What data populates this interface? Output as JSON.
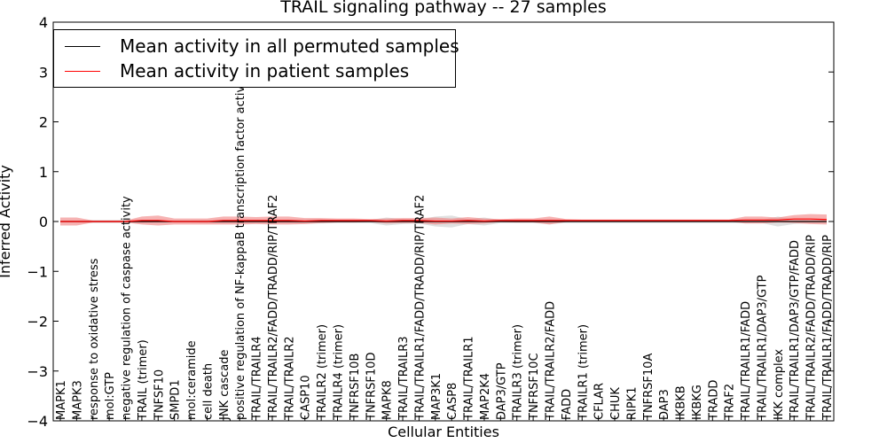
{
  "chart_data": {
    "type": "line",
    "title": "TRAIL signaling pathway -- 27 samples",
    "xlabel": "Cellular Entities",
    "ylabel": "Inferred Activity",
    "ylim": [
      -4,
      4
    ],
    "yticks": [
      -4,
      -3,
      -2,
      -1,
      0,
      1,
      2,
      3,
      4
    ],
    "legend_position": "upper-left",
    "categories": [
      "MAPK1",
      "MAPK3",
      "response to oxidative stress",
      "mol:GTP",
      "negative regulation of caspase activity",
      "TRAIL (trimer)",
      "TNFSF10",
      "SMPD1",
      "mol:ceramide",
      "cell death",
      "JNK cascade",
      "positive regulation of NF-kappaB transcription factor activity",
      "TRAIL/TRAILR4",
      "TRAIL/TRAILR2/FADD/TRADD/RIP/TRAF2",
      "TRAIL/TRAILR2",
      "CASP10",
      "TRAILR2 (trimer)",
      "TRAILR4 (trimer)",
      "TNFRSF10B",
      "TNFRSF10D",
      "MAPK8",
      "TRAIL/TRAILR3",
      "TRAIL/TRAILR1/FADD/TRADD/RIP/TRAF2",
      "MAP3K1",
      "CASP8",
      "TRAIL/TRAILR1",
      "MAP2K4",
      "DAP3/GTP",
      "TRAILR3 (trimer)",
      "TNFRSF10C",
      "TRAIL/TRAILR2/FADD",
      "FADD",
      "TRAILR1 (trimer)",
      "CFLAR",
      "CHUK",
      "RIPK1",
      "TNFRSF10A",
      "DAP3",
      "IKBKB",
      "IKBKG",
      "TRADD",
      "TRAF2",
      "TRAIL/TRAILR1/FADD",
      "TRAIL/TRAILR1/DAP3/GTP",
      "IKK complex",
      "TRAIL/TRAILR1/DAP3/GTP/FADD",
      "TRAIL/TRAILR2/FADD/TRADD/RIP",
      "TRAIL/TRAILR1/FADD/TRADD/RIP"
    ],
    "series": [
      {
        "name": "Mean activity in all permuted samples",
        "color": "#000000",
        "band_color": "#bbbbbb",
        "values": [
          0,
          0,
          0,
          0,
          0,
          0,
          0,
          0,
          0,
          0,
          0,
          0,
          0,
          0,
          0,
          0,
          0,
          0,
          0,
          0,
          0,
          0,
          0,
          0,
          0,
          0,
          0,
          0,
          0,
          0,
          0,
          0,
          0,
          0,
          0,
          0,
          0,
          0,
          0,
          0,
          0,
          0,
          0,
          0,
          0,
          0,
          0,
          0
        ],
        "band": [
          0.02,
          0.02,
          0.03,
          0.03,
          0.03,
          0.03,
          0.02,
          0.02,
          0.02,
          0.03,
          0.03,
          0.03,
          0.03,
          0.03,
          0.03,
          0.04,
          0.04,
          0.03,
          0.03,
          0.03,
          0.08,
          0.05,
          0.04,
          0.1,
          0.12,
          0.05,
          0.08,
          0.03,
          0.03,
          0.03,
          0.05,
          0.03,
          0.03,
          0.03,
          0.03,
          0.03,
          0.03,
          0.03,
          0.03,
          0.03,
          0.03,
          0.03,
          0.03,
          0.03,
          0.1,
          0.05,
          0.03,
          0.03
        ]
      },
      {
        "name": "Mean activity in patient samples",
        "color": "#ff0000",
        "band_color": "#f08080",
        "values": [
          0,
          0,
          0,
          0,
          0,
          0.02,
          0.02,
          0,
          0,
          0,
          0.02,
          0.02,
          0.02,
          0.02,
          0.02,
          0.01,
          0.02,
          0.02,
          0.02,
          0.02,
          0.01,
          0.02,
          0.02,
          0.01,
          0.01,
          0.02,
          0.01,
          0.02,
          0.02,
          0.02,
          0.02,
          0.02,
          0.02,
          0.02,
          0.02,
          0.02,
          0.02,
          0.02,
          0.02,
          0.02,
          0.02,
          0.02,
          0.03,
          0.03,
          0.03,
          0.05,
          0.05,
          0.04
        ],
        "band": [
          0.08,
          0.08,
          0.02,
          0.02,
          0.02,
          0.08,
          0.1,
          0.06,
          0.06,
          0.06,
          0.08,
          0.08,
          0.07,
          0.08,
          0.08,
          0.06,
          0.05,
          0.04,
          0.04,
          0.03,
          0.05,
          0.05,
          0.05,
          0.07,
          0.05,
          0.07,
          0.05,
          0.03,
          0.04,
          0.04,
          0.08,
          0.03,
          0.02,
          0.02,
          0.02,
          0.02,
          0.02,
          0.02,
          0.02,
          0.02,
          0.02,
          0.02,
          0.07,
          0.07,
          0.05,
          0.08,
          0.1,
          0.1
        ]
      }
    ]
  }
}
